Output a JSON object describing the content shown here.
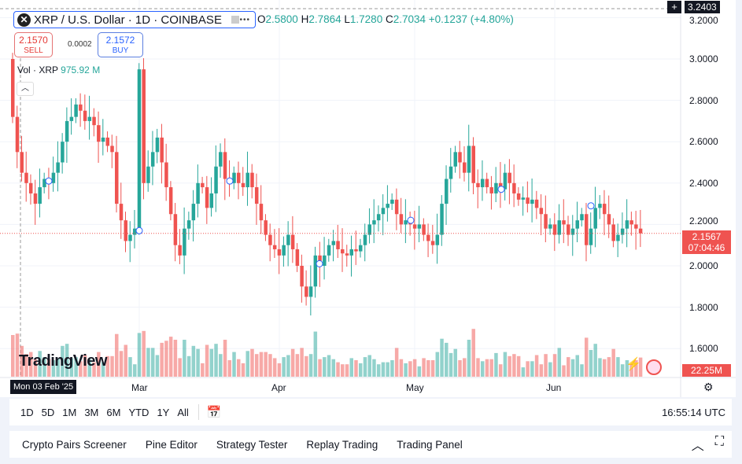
{
  "header": {
    "symbol": "XRP / U.S. Dollar · 1D · COINBASE",
    "more": "•••",
    "o_label": "O",
    "o_value": "2.5800",
    "h_label": "H",
    "h_value": "2.7864",
    "l_label": "L",
    "l_value": "1.7280",
    "c_label": "C",
    "c_value": "2.7034",
    "change": "+0.1237 (+4.80%)"
  },
  "trade": {
    "sell_price": "2.1570",
    "sell_label": "SELL",
    "spread": "0.0002",
    "buy_price": "2.1572",
    "buy_label": "BUY"
  },
  "volume_legend": {
    "label": "Vol · XRP",
    "value": "975.92 M"
  },
  "logo": "TradingView",
  "price_axis": {
    "ticks": [
      "3.2000",
      "3.0000",
      "2.8000",
      "2.6000",
      "2.4000",
      "2.2000",
      "2.0000",
      "1.8000",
      "1.6000"
    ],
    "crosshair_price": "3.2403",
    "last_price": "2.1567",
    "countdown": "07:04:46",
    "last_volume": "22.25M"
  },
  "time_axis": {
    "crosshair_date": "Mon 03 Feb '25",
    "months": [
      "Mar",
      "Apr",
      "May",
      "Jun"
    ]
  },
  "colors": {
    "up": "#26a69a",
    "down": "#ef5350"
  },
  "toolbar": {
    "ranges": [
      "1D",
      "5D",
      "1M",
      "3M",
      "6M",
      "YTD",
      "1Y",
      "All"
    ],
    "clock": "16:55:14 UTC"
  },
  "bottom_panel": {
    "tabs": [
      "Crypto Pairs Screener",
      "Pine Editor",
      "Strategy Tester",
      "Replay Trading",
      "Trading Panel"
    ]
  },
  "chart_data": {
    "type": "candlestick",
    "start_open": 3.0,
    "ylim": [
      1.55,
      3.25
    ],
    "closes": [
      2.72,
      2.55,
      2.45,
      2.4,
      2.35,
      2.3,
      2.38,
      2.42,
      2.4,
      2.45,
      2.5,
      2.6,
      2.7,
      2.72,
      2.78,
      2.75,
      2.7,
      2.72,
      2.68,
      2.6,
      2.62,
      2.58,
      2.55,
      2.3,
      2.22,
      2.12,
      2.15,
      2.18,
      2.95,
      2.4,
      2.48,
      2.55,
      2.62,
      2.5,
      2.38,
      2.25,
      2.1,
      2.05,
      2.18,
      2.22,
      2.3,
      2.4,
      2.38,
      2.28,
      2.35,
      2.48,
      2.55,
      2.42,
      2.4,
      2.45,
      2.4,
      2.38,
      2.45,
      2.38,
      2.3,
      2.22,
      2.15,
      2.1,
      2.08,
      2.05,
      2.1,
      2.15,
      2.08,
      2.0,
      1.9,
      1.85,
      1.9,
      2.05,
      2.0,
      2.05,
      2.1,
      2.12,
      2.08,
      2.06,
      2.05,
      2.08,
      2.07,
      2.1,
      2.15,
      2.2,
      2.22,
      2.25,
      2.28,
      2.3,
      2.32,
      2.25,
      2.2,
      2.22,
      2.2,
      2.18,
      2.2,
      2.15,
      2.12,
      2.1,
      2.15,
      2.3,
      2.42,
      2.48,
      2.55,
      2.5,
      2.45,
      2.58,
      2.4,
      2.38,
      2.42,
      2.38,
      2.35,
      2.4,
      2.37,
      2.45,
      2.4,
      2.35,
      2.32,
      2.33,
      2.3,
      2.32,
      2.28,
      2.25,
      2.18,
      2.2,
      2.15,
      2.22,
      2.2,
      2.15,
      2.18,
      2.22,
      2.25,
      2.1,
      2.18,
      2.28,
      2.3,
      2.25,
      2.2,
      2.12,
      2.15,
      2.18,
      2.22,
      2.2,
      2.18,
      2.157
    ]
  }
}
